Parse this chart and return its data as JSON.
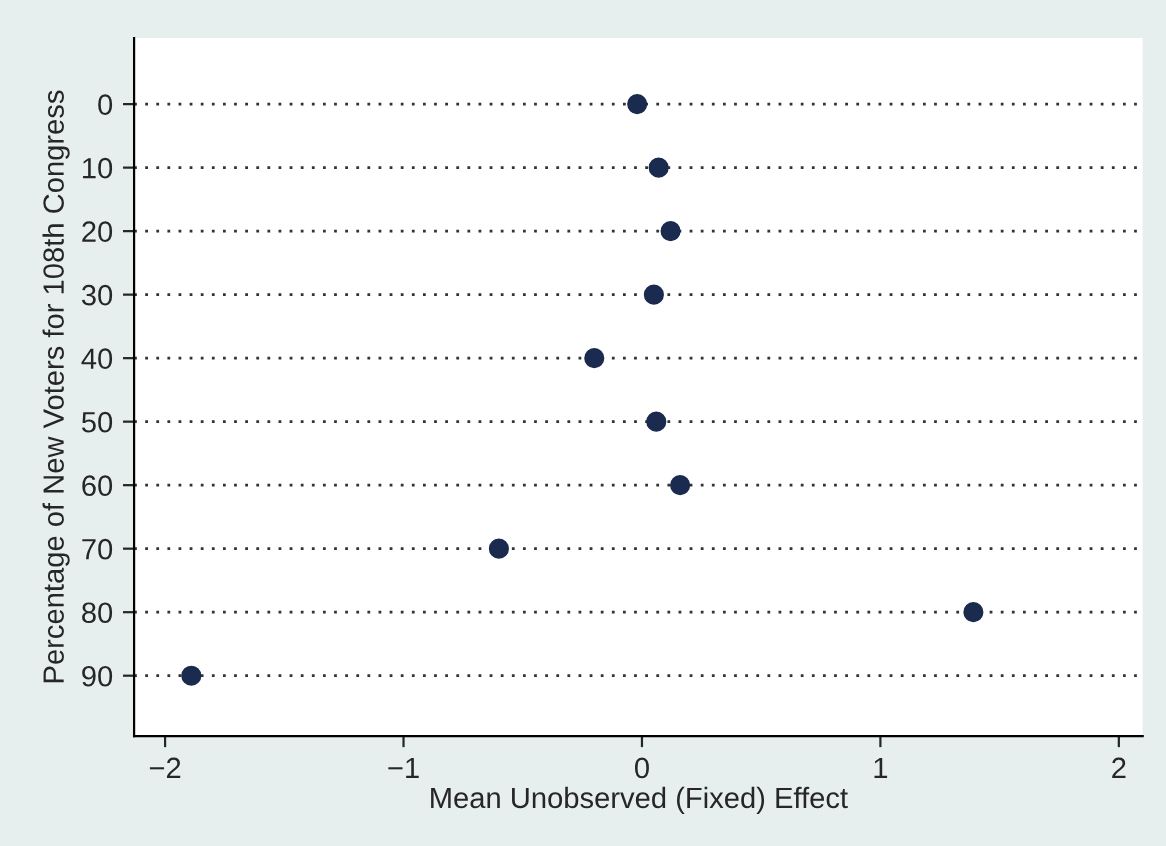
{
  "chart_data": {
    "type": "scatter",
    "orientation": "horizontal",
    "xlabel": "Mean Unobserved (Fixed) Effect",
    "ylabel": "Percentage of New Voters for 108th Congress",
    "categories": [
      "0",
      "10",
      "20",
      "30",
      "40",
      "50",
      "60",
      "70",
      "80",
      "90"
    ],
    "series": [
      {
        "color": "#1a2b4f",
        "values": [
          -0.02,
          0.07,
          0.12,
          0.05,
          -0.2,
          0.06,
          0.16,
          -0.6,
          1.39,
          -1.89
        ]
      }
    ],
    "xlim": [
      -2.13,
      2.1
    ],
    "xticks": [
      {
        "value": -2,
        "label": "−2"
      },
      {
        "value": -1,
        "label": "−1"
      },
      0,
      1,
      2
    ],
    "grid": "y",
    "marker": "circle",
    "legend": false
  }
}
